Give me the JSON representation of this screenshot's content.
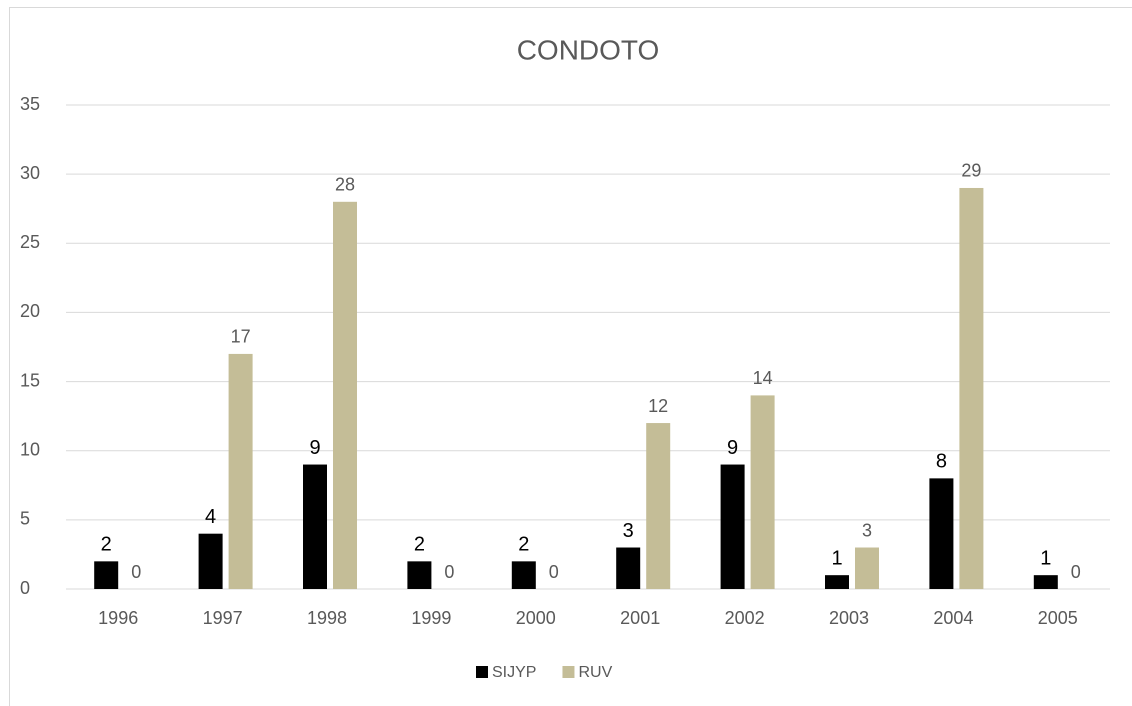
{
  "chart_data": {
    "type": "bar",
    "title": "CONDOTO",
    "categories": [
      "1996",
      "1997",
      "1998",
      "1999",
      "2000",
      "2001",
      "2002",
      "2003",
      "2004",
      "2005"
    ],
    "series": [
      {
        "name": "SIJYP",
        "color": "#000000",
        "values": [
          2,
          4,
          9,
          2,
          2,
          3,
          9,
          1,
          8,
          1
        ]
      },
      {
        "name": "RUV",
        "color": "#c4bd97",
        "values": [
          0,
          17,
          28,
          0,
          0,
          12,
          14,
          3,
          29,
          0
        ]
      }
    ],
    "ylim": [
      0,
      35
    ],
    "yticks": [
      0,
      5,
      10,
      15,
      20,
      25,
      30,
      35
    ],
    "grid": true,
    "legend": "bottom"
  }
}
